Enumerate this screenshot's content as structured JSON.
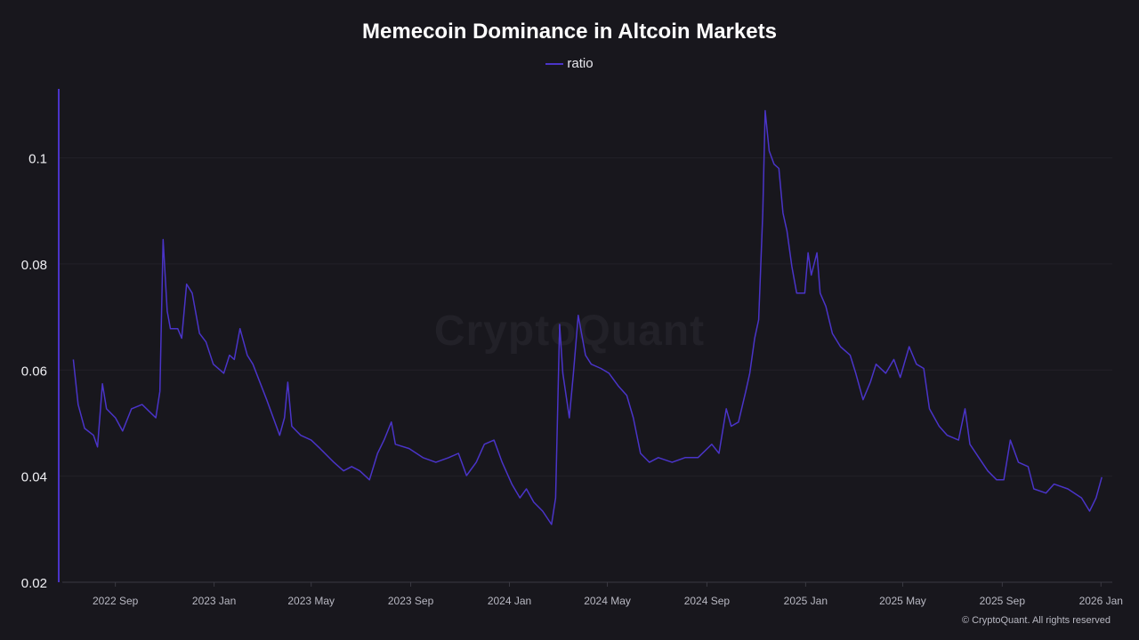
{
  "chart_data": {
    "type": "line",
    "title": "Memecoin Dominance in Altcoin Markets",
    "xlabel": "",
    "ylabel": "",
    "ylim": [
      0.02,
      0.113
    ],
    "xlim": [
      "2022-06-23",
      "2026-01-15"
    ],
    "grid": true,
    "legend_position": "top-center",
    "y_ticks": [
      {
        "value": 0.02,
        "label": "0.02"
      },
      {
        "value": 0.04,
        "label": "0.04"
      },
      {
        "value": 0.06,
        "label": "0.06"
      },
      {
        "value": 0.08,
        "label": "0.08"
      },
      {
        "value": 0.1,
        "label": "0.1"
      }
    ],
    "x_ticks": [
      {
        "date": "2022-09-01",
        "label": "2022 Sep"
      },
      {
        "date": "2023-01-01",
        "label": "2023 Jan"
      },
      {
        "date": "2023-05-01",
        "label": "2023 May"
      },
      {
        "date": "2023-09-01",
        "label": "2023 Sep"
      },
      {
        "date": "2024-01-01",
        "label": "2024 Jan"
      },
      {
        "date": "2024-05-01",
        "label": "2024 May"
      },
      {
        "date": "2024-09-01",
        "label": "2024 Sep"
      },
      {
        "date": "2025-01-01",
        "label": "2025 Jan"
      },
      {
        "date": "2025-05-01",
        "label": "2025 May"
      },
      {
        "date": "2025-09-01",
        "label": "2025 Sep"
      },
      {
        "date": "2026-01-01",
        "label": "2026 Jan"
      }
    ],
    "series": [
      {
        "name": "ratio",
        "color": "#4a34c8",
        "points": [
          [
            "2022-07-11",
            0.062
          ],
          [
            "2022-07-17",
            0.0535
          ],
          [
            "2022-07-25",
            0.049
          ],
          [
            "2022-08-05",
            0.0477
          ],
          [
            "2022-08-10",
            0.0455
          ],
          [
            "2022-08-16",
            0.0574
          ],
          [
            "2022-08-21",
            0.0527
          ],
          [
            "2022-09-01",
            0.051
          ],
          [
            "2022-09-10",
            0.0485
          ],
          [
            "2022-09-21",
            0.0527
          ],
          [
            "2022-10-04",
            0.0535
          ],
          [
            "2022-10-21",
            0.051
          ],
          [
            "2022-10-26",
            0.056
          ],
          [
            "2022-10-30",
            0.0846
          ],
          [
            "2022-11-04",
            0.0711
          ],
          [
            "2022-11-08",
            0.0678
          ],
          [
            "2022-11-17",
            0.0678
          ],
          [
            "2022-11-22",
            0.066
          ],
          [
            "2022-11-28",
            0.0762
          ],
          [
            "2022-12-05",
            0.0745
          ],
          [
            "2022-12-14",
            0.0669
          ],
          [
            "2022-12-22",
            0.0653
          ],
          [
            "2022-12-31",
            0.0611
          ],
          [
            "2023-01-13",
            0.0594
          ],
          [
            "2023-01-20",
            0.0628
          ],
          [
            "2023-01-26",
            0.062
          ],
          [
            "2023-02-02",
            0.0678
          ],
          [
            "2023-02-11",
            0.0628
          ],
          [
            "2023-02-18",
            0.0611
          ],
          [
            "2023-03-07",
            0.0544
          ],
          [
            "2023-03-23",
            0.0477
          ],
          [
            "2023-03-29",
            0.051
          ],
          [
            "2023-04-02",
            0.0577
          ],
          [
            "2023-04-07",
            0.0494
          ],
          [
            "2023-04-18",
            0.0477
          ],
          [
            "2023-05-01",
            0.0468
          ],
          [
            "2023-05-12",
            0.0452
          ],
          [
            "2023-05-29",
            0.0426
          ],
          [
            "2023-06-10",
            0.041
          ],
          [
            "2023-06-20",
            0.0418
          ],
          [
            "2023-06-30",
            0.041
          ],
          [
            "2023-07-12",
            0.0393
          ],
          [
            "2023-07-22",
            0.0443
          ],
          [
            "2023-07-30",
            0.0468
          ],
          [
            "2023-08-08",
            0.0502
          ],
          [
            "2023-08-13",
            0.046
          ],
          [
            "2023-08-30",
            0.0452
          ],
          [
            "2023-09-16",
            0.0435
          ],
          [
            "2023-10-02",
            0.0426
          ],
          [
            "2023-10-18",
            0.0435
          ],
          [
            "2023-10-30",
            0.0443
          ],
          [
            "2023-11-09",
            0.0401
          ],
          [
            "2023-11-21",
            0.0426
          ],
          [
            "2023-12-01",
            0.046
          ],
          [
            "2023-12-13",
            0.0468
          ],
          [
            "2023-12-23",
            0.0426
          ],
          [
            "2024-01-04",
            0.0385
          ],
          [
            "2024-01-14",
            0.0359
          ],
          [
            "2024-01-22",
            0.0376
          ],
          [
            "2024-01-31",
            0.0351
          ],
          [
            "2024-02-11",
            0.0334
          ],
          [
            "2024-02-22",
            0.0309
          ],
          [
            "2024-02-27",
            0.0359
          ],
          [
            "2024-03-03",
            0.0686
          ],
          [
            "2024-03-07",
            0.0594
          ],
          [
            "2024-03-15",
            0.051
          ],
          [
            "2024-03-20",
            0.0594
          ],
          [
            "2024-03-26",
            0.0703
          ],
          [
            "2024-04-04",
            0.0628
          ],
          [
            "2024-04-11",
            0.0611
          ],
          [
            "2024-04-23",
            0.0603
          ],
          [
            "2024-05-03",
            0.0594
          ],
          [
            "2024-05-15",
            0.0569
          ],
          [
            "2024-05-25",
            0.0552
          ],
          [
            "2024-06-02",
            0.051
          ],
          [
            "2024-06-11",
            0.0443
          ],
          [
            "2024-06-22",
            0.0426
          ],
          [
            "2024-07-03",
            0.0435
          ],
          [
            "2024-07-20",
            0.0426
          ],
          [
            "2024-08-05",
            0.0435
          ],
          [
            "2024-08-21",
            0.0435
          ],
          [
            "2024-09-07",
            0.046
          ],
          [
            "2024-09-16",
            0.0443
          ],
          [
            "2024-09-25",
            0.0527
          ],
          [
            "2024-10-01",
            0.0494
          ],
          [
            "2024-10-10",
            0.0502
          ],
          [
            "2024-10-19",
            0.056
          ],
          [
            "2024-10-24",
            0.0594
          ],
          [
            "2024-10-30",
            0.066
          ],
          [
            "2024-11-04",
            0.0695
          ],
          [
            "2024-11-09",
            0.0896
          ],
          [
            "2024-11-12",
            0.1089
          ],
          [
            "2024-11-17",
            0.1013
          ],
          [
            "2024-11-23",
            0.0988
          ],
          [
            "2024-11-29",
            0.098
          ],
          [
            "2024-12-04",
            0.0896
          ],
          [
            "2024-12-09",
            0.0862
          ],
          [
            "2024-12-15",
            0.0795
          ],
          [
            "2024-12-21",
            0.0745
          ],
          [
            "2024-12-31",
            0.0745
          ],
          [
            "2025-01-04",
            0.0821
          ],
          [
            "2025-01-08",
            0.0779
          ],
          [
            "2025-01-15",
            0.0821
          ],
          [
            "2025-01-19",
            0.0745
          ],
          [
            "2025-01-26",
            0.072
          ],
          [
            "2025-02-03",
            0.0669
          ],
          [
            "2025-02-13",
            0.0644
          ],
          [
            "2025-02-25",
            0.0628
          ],
          [
            "2025-03-04",
            0.0594
          ],
          [
            "2025-03-13",
            0.0544
          ],
          [
            "2025-03-22",
            0.0577
          ],
          [
            "2025-03-29",
            0.0611
          ],
          [
            "2025-04-10",
            0.0594
          ],
          [
            "2025-04-20",
            0.062
          ],
          [
            "2025-04-28",
            0.0586
          ],
          [
            "2025-05-09",
            0.0644
          ],
          [
            "2025-05-18",
            0.0611
          ],
          [
            "2025-05-27",
            0.0603
          ],
          [
            "2025-06-03",
            0.0527
          ],
          [
            "2025-06-15",
            0.0494
          ],
          [
            "2025-06-25",
            0.0477
          ],
          [
            "2025-07-09",
            0.0468
          ],
          [
            "2025-07-17",
            0.0527
          ],
          [
            "2025-07-23",
            0.046
          ],
          [
            "2025-08-03",
            0.0435
          ],
          [
            "2025-08-14",
            0.041
          ],
          [
            "2025-08-25",
            0.0393
          ],
          [
            "2025-09-03",
            0.0393
          ],
          [
            "2025-09-11",
            0.0468
          ],
          [
            "2025-09-21",
            0.0426
          ],
          [
            "2025-10-03",
            0.0418
          ],
          [
            "2025-10-10",
            0.0376
          ],
          [
            "2025-10-25",
            0.0368
          ],
          [
            "2025-11-04",
            0.0385
          ],
          [
            "2025-11-21",
            0.0376
          ],
          [
            "2025-12-08",
            0.0359
          ],
          [
            "2025-12-18",
            0.0334
          ],
          [
            "2025-12-26",
            0.0359
          ],
          [
            "2026-01-02",
            0.0398
          ]
        ]
      }
    ]
  },
  "watermark": "CryptoQuant",
  "credit": "© CryptoQuant. All rights reserved"
}
